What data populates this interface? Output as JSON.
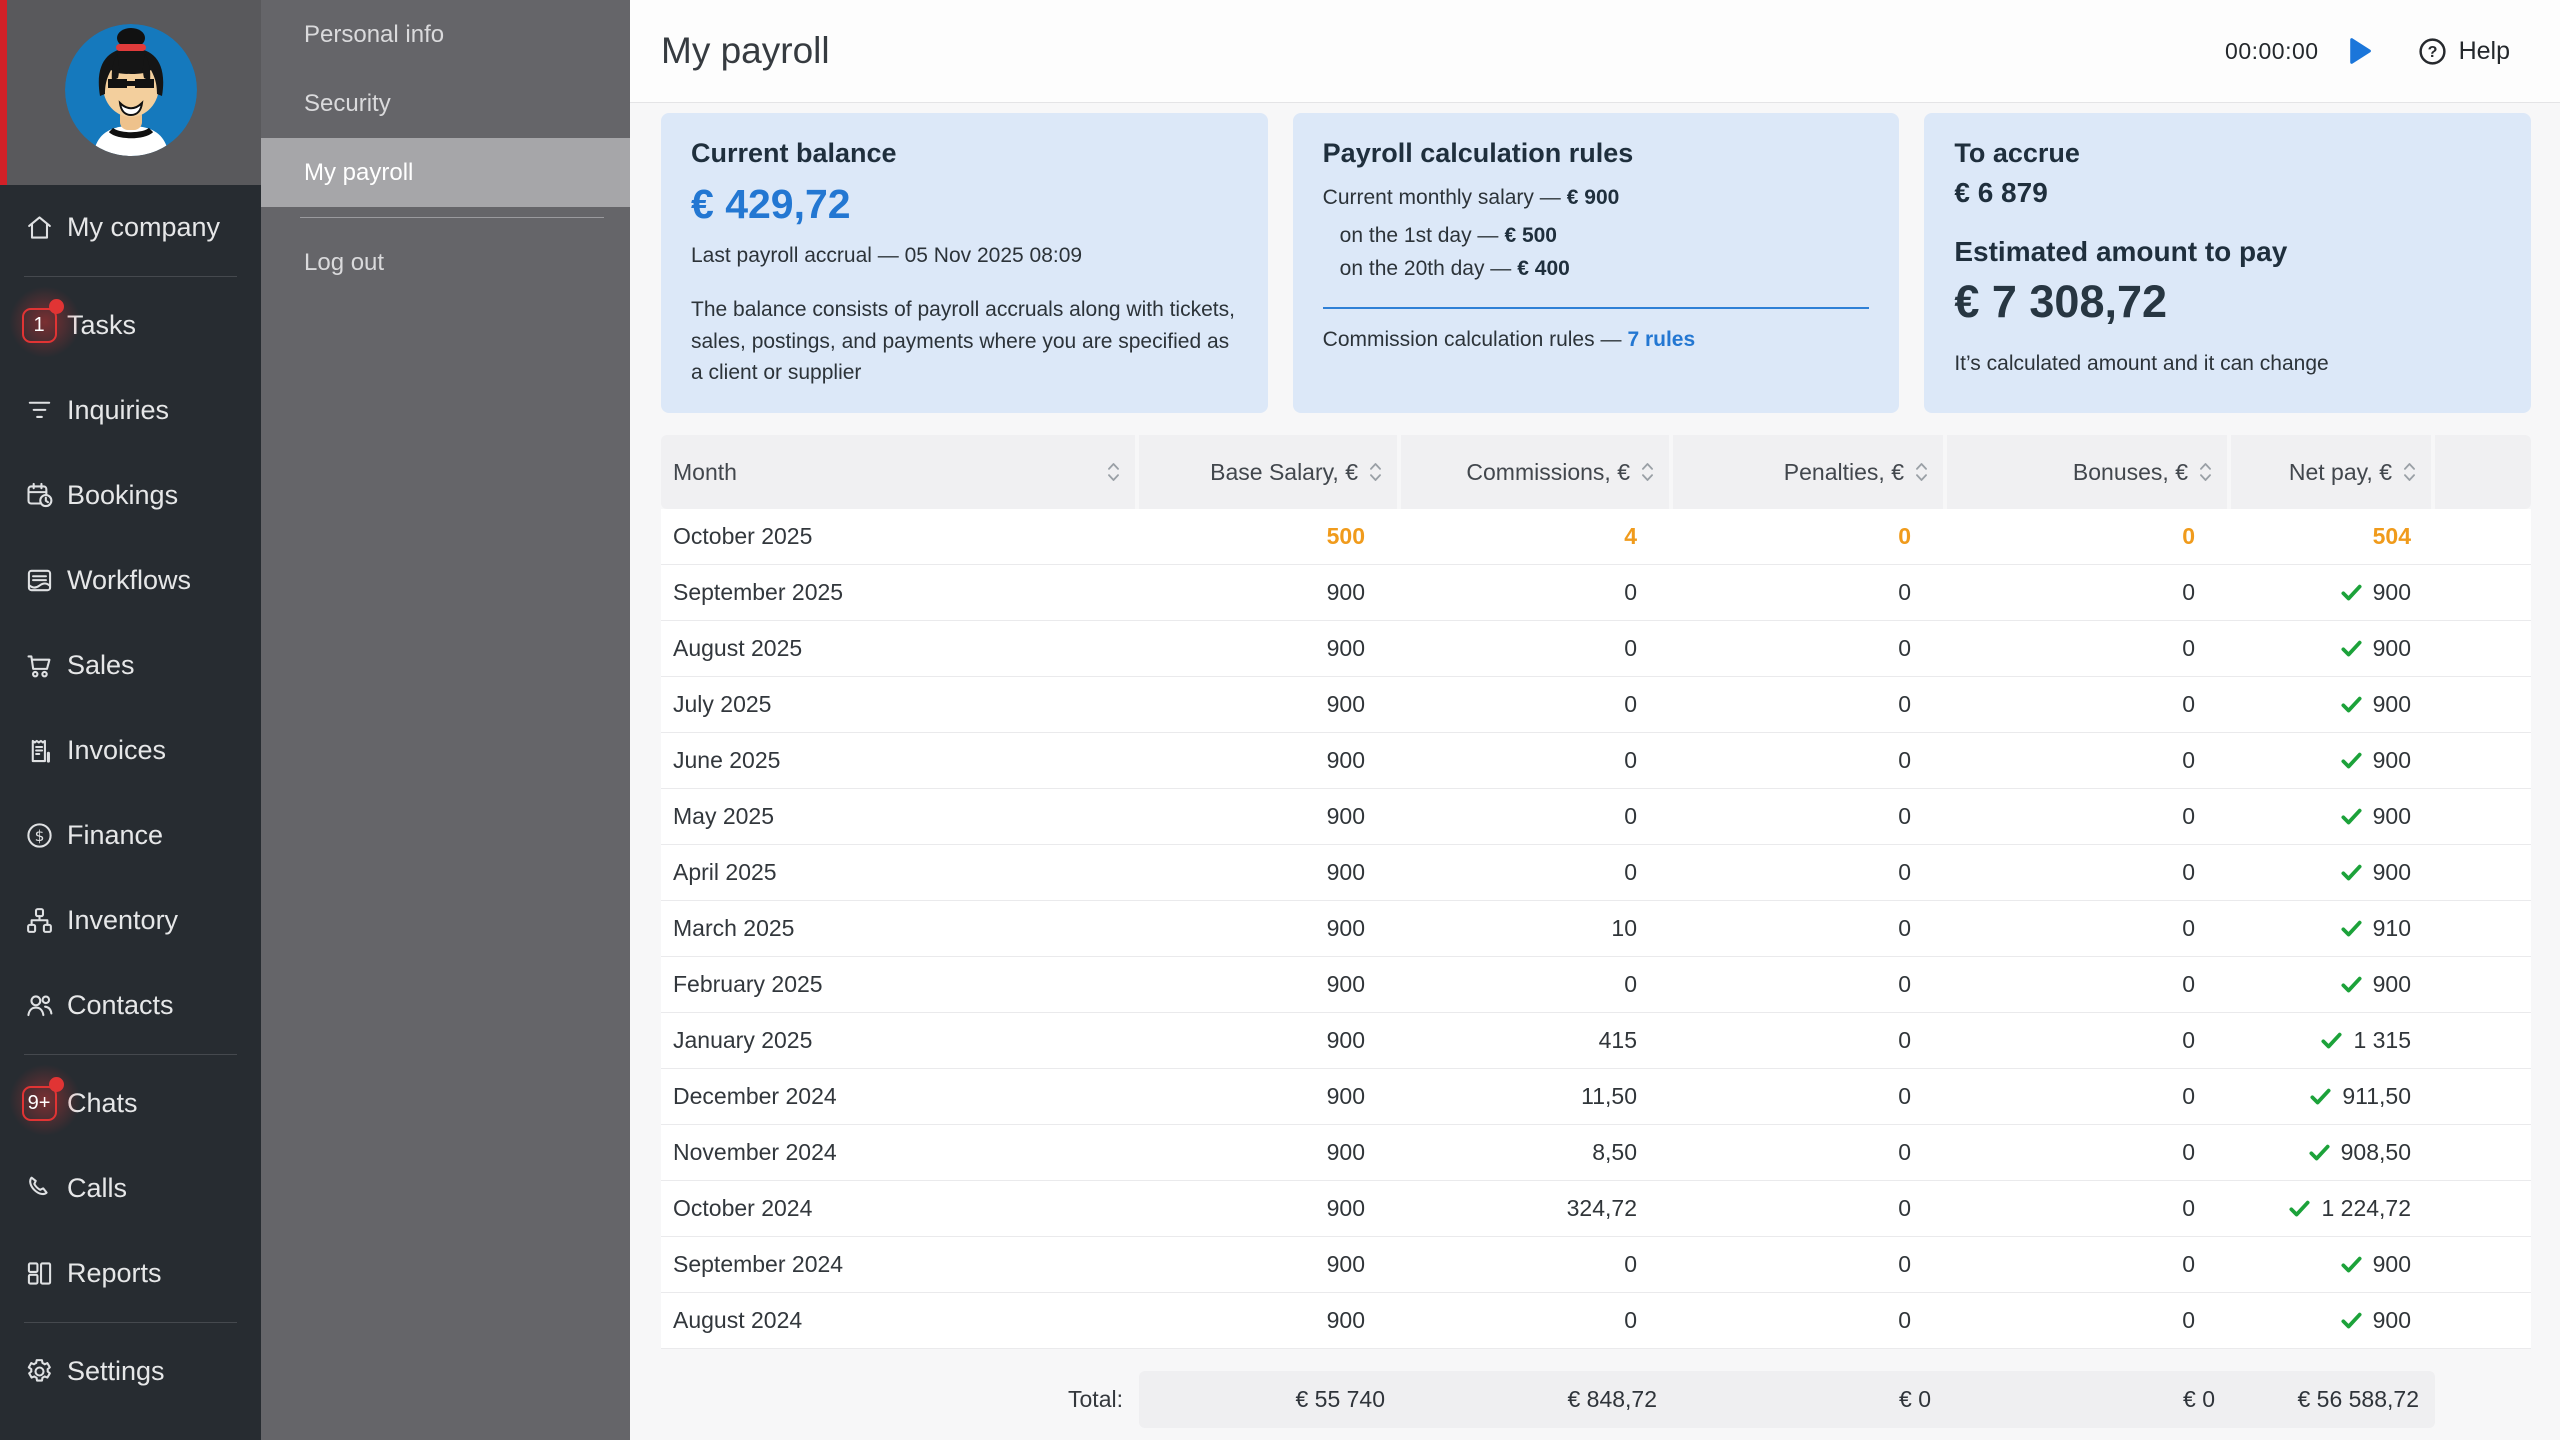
{
  "colors": {
    "accent_blue": "#2377d2",
    "accent_orange": "#f09b1c",
    "accent_green": "#1ca23a",
    "badge_red": "#e13434",
    "stripe_red": "#d32027"
  },
  "sidebar": {
    "items": [
      {
        "label": "My company",
        "icon": "home-icon",
        "divider_after": true
      },
      {
        "label": "Tasks",
        "icon": "tasks-badge",
        "badge": "1"
      },
      {
        "label": "Inquiries",
        "icon": "funnel-icon"
      },
      {
        "label": "Bookings",
        "icon": "calendar-clock-icon"
      },
      {
        "label": "Workflows",
        "icon": "workflow-document-icon"
      },
      {
        "label": "Sales",
        "icon": "cart-icon"
      },
      {
        "label": "Invoices",
        "icon": "receipt-icon"
      },
      {
        "label": "Finance",
        "icon": "dollar-circle-icon"
      },
      {
        "label": "Inventory",
        "icon": "sitemap-icon"
      },
      {
        "label": "Contacts",
        "icon": "people-icon",
        "divider_after": true
      },
      {
        "label": "Chats",
        "icon": "chats-badge",
        "badge": "9+"
      },
      {
        "label": "Calls",
        "icon": "phone-icon"
      },
      {
        "label": "Reports",
        "icon": "dashboard-icon",
        "divider_after": true
      },
      {
        "label": "Settings",
        "icon": "gear-icon"
      }
    ]
  },
  "account_menu": {
    "items": [
      {
        "label": "Personal info",
        "active": false
      },
      {
        "label": "Security",
        "active": false
      },
      {
        "label": "My payroll",
        "active": true,
        "divider_after": true
      },
      {
        "label": "Log out",
        "active": false
      }
    ]
  },
  "header": {
    "title": "My payroll",
    "timer": "00:00:00",
    "help": "Help"
  },
  "cards": {
    "balance": {
      "title": "Current balance",
      "amount": "€ 429,72",
      "accrual": "Last payroll accrual — 05 Nov 2025 08:09",
      "description": "The balance consists of payroll accruals along with tickets, sales, postings, and payments where you are specified as a client or supplier"
    },
    "rules": {
      "title": "Payroll calculation rules",
      "salary": {
        "text": "Current monthly salary —",
        "value": "€ 900"
      },
      "day1": {
        "text": "on the 1st day —",
        "value": "€ 500"
      },
      "day20": {
        "text": "on the 20th day —",
        "value": "€ 400"
      },
      "commission": {
        "text": "Commission calculation rules —",
        "link": "7 rules"
      }
    },
    "accrue": {
      "title": "To accrue",
      "amount": "€ 6 879",
      "estimated_title": "Estimated amount to pay",
      "estimated_amount": "€ 7 308,72",
      "note": "It’s calculated amount and it can change"
    }
  },
  "payroll_table": {
    "columns": [
      "Month",
      "Base Salary, €",
      "Commissions, €",
      "Penalties, €",
      "Bonuses, €",
      "Net pay, €"
    ],
    "rows": [
      {
        "month": "October 2025",
        "base": "500",
        "commissions": "4",
        "penalties": "0",
        "bonuses": "0",
        "net": "504",
        "accent": true,
        "paid": false
      },
      {
        "month": "September 2025",
        "base": "900",
        "commissions": "0",
        "penalties": "0",
        "bonuses": "0",
        "net": "900",
        "accent": false,
        "paid": true
      },
      {
        "month": "August 2025",
        "base": "900",
        "commissions": "0",
        "penalties": "0",
        "bonuses": "0",
        "net": "900",
        "accent": false,
        "paid": true
      },
      {
        "month": "July 2025",
        "base": "900",
        "commissions": "0",
        "penalties": "0",
        "bonuses": "0",
        "net": "900",
        "accent": false,
        "paid": true
      },
      {
        "month": "June 2025",
        "base": "900",
        "commissions": "0",
        "penalties": "0",
        "bonuses": "0",
        "net": "900",
        "accent": false,
        "paid": true
      },
      {
        "month": "May 2025",
        "base": "900",
        "commissions": "0",
        "penalties": "0",
        "bonuses": "0",
        "net": "900",
        "accent": false,
        "paid": true
      },
      {
        "month": "April 2025",
        "base": "900",
        "commissions": "0",
        "penalties": "0",
        "bonuses": "0",
        "net": "900",
        "accent": false,
        "paid": true
      },
      {
        "month": "March 2025",
        "base": "900",
        "commissions": "10",
        "penalties": "0",
        "bonuses": "0",
        "net": "910",
        "accent": false,
        "paid": true
      },
      {
        "month": "February 2025",
        "base": "900",
        "commissions": "0",
        "penalties": "0",
        "bonuses": "0",
        "net": "900",
        "accent": false,
        "paid": true
      },
      {
        "month": "January 2025",
        "base": "900",
        "commissions": "415",
        "penalties": "0",
        "bonuses": "0",
        "net": "1 315",
        "accent": false,
        "paid": true
      },
      {
        "month": "December 2024",
        "base": "900",
        "commissions": "11,50",
        "penalties": "0",
        "bonuses": "0",
        "net": "911,50",
        "accent": false,
        "paid": true
      },
      {
        "month": "November 2024",
        "base": "900",
        "commissions": "8,50",
        "penalties": "0",
        "bonuses": "0",
        "net": "908,50",
        "accent": false,
        "paid": true
      },
      {
        "month": "October 2024",
        "base": "900",
        "commissions": "324,72",
        "penalties": "0",
        "bonuses": "0",
        "net": "1 224,72",
        "accent": false,
        "paid": true
      },
      {
        "month": "September 2024",
        "base": "900",
        "commissions": "0",
        "penalties": "0",
        "bonuses": "0",
        "net": "900",
        "accent": false,
        "paid": true
      },
      {
        "month": "August 2024",
        "base": "900",
        "commissions": "0",
        "penalties": "0",
        "bonuses": "0",
        "net": "900",
        "accent": false,
        "paid": true
      }
    ],
    "total_label": "Total:",
    "totals": [
      "€ 55 740",
      "€ 848,72",
      "€ 0",
      "€ 0",
      "€ 56 588,72"
    ]
  }
}
